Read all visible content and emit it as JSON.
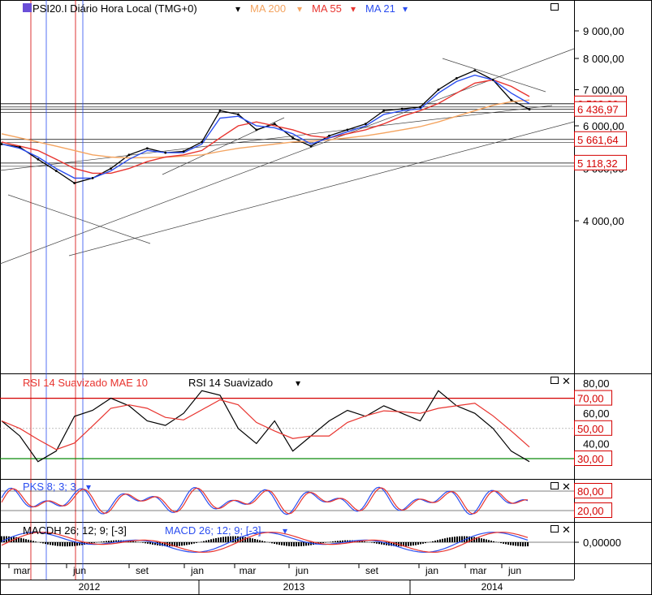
{
  "colors": {
    "price": "#000000",
    "ma200": "#f4a460",
    "ma55": "#e8342f",
    "ma21": "#2b4ef0",
    "rsi": "#000000",
    "rsi_mae": "#e8342f",
    "level_red": "#d40000",
    "level_green": "#0a8a0a",
    "pks_blue": "#2b4ef0",
    "pks_red": "#e8342f",
    "macd": "#2b4ef0",
    "macd_signal": "#e8342f",
    "hist": "#000000",
    "grid": "#000000"
  },
  "header": {
    "title": "PSI20.I Diário Hora Local (TMG+0)",
    "ma200_label": "MA 200",
    "ma55_label": "MA 55",
    "ma21_label": "MA 21",
    "dropdown_glyph": "▾"
  },
  "rsi_panel": {
    "label1": "RSI 14 Suavizado MAE 10",
    "label2": "RSI 14 Suavizado",
    "dropdown_glyph": "▾"
  },
  "pks_panel": {
    "label": "PKS 8; 3; 3",
    "dropdown_glyph": "▾"
  },
  "macd_panel": {
    "label1": "MACDH 26; 12; 9; [-3]",
    "label2": "MACD 26; 12; 9; [-3]",
    "dropdown_glyph": "▾"
  },
  "price_axis": {
    "ticks": [
      "9 000,00",
      "8 000,00",
      "7 000,00",
      "6 000,00",
      "5 000,00",
      "4 000,00"
    ],
    "values": [
      9000,
      8000,
      7000,
      6000,
      5000,
      4000
    ],
    "highlighted": [
      {
        "label": "6 593,20",
        "value": 6593.2
      },
      {
        "label": "6 436,97",
        "value": 6436.97
      },
      {
        "label": "5 661,64",
        "value": 5661.64
      },
      {
        "label": "5 118,32",
        "value": 5118.32
      }
    ]
  },
  "rsi_axis": {
    "ticks": [
      "80,00",
      "60,00",
      "40,00"
    ],
    "values": [
      80,
      60,
      40
    ],
    "highlighted": [
      {
        "label": "70,00",
        "value": 70
      },
      {
        "label": "50,00",
        "value": 50
      },
      {
        "label": "30,00",
        "value": 30
      }
    ]
  },
  "pks_axis": {
    "highlighted": [
      {
        "label": "80,00",
        "value": 80
      },
      {
        "label": "20,00",
        "value": 20
      }
    ]
  },
  "macd_axis": {
    "ticks": [
      "0,00000"
    ],
    "values": [
      0
    ]
  },
  "time_axis": {
    "months": [
      "mar",
      "jun",
      "set",
      "jan",
      "mar",
      "jun",
      "set",
      "jan",
      "mar",
      "jun"
    ],
    "years": [
      "2012",
      "2013",
      "2014"
    ]
  },
  "chart_data": {
    "type": "line",
    "price_scale": "log",
    "ylim": [
      3000,
      9800
    ],
    "x": [
      "2012-01",
      "2012-02",
      "2012-03",
      "2012-04",
      "2012-05",
      "2012-06",
      "2012-07",
      "2012-08",
      "2012-09",
      "2012-10",
      "2012-11",
      "2012-12",
      "2013-01",
      "2013-02",
      "2013-03",
      "2013-04",
      "2013-05",
      "2013-06",
      "2013-07",
      "2013-08",
      "2013-09",
      "2013-10",
      "2013-11",
      "2013-12",
      "2014-01",
      "2014-02",
      "2014-03",
      "2014-04",
      "2014-05",
      "2014-06"
    ],
    "series": [
      {
        "name": "PSI20.I",
        "values": [
          5550,
          5480,
          5200,
          4950,
          4700,
          4800,
          5000,
          5300,
          5450,
          5350,
          5380,
          5600,
          6400,
          6300,
          5900,
          6050,
          5700,
          5500,
          5750,
          5900,
          6050,
          6400,
          6450,
          6500,
          7000,
          7350,
          7600,
          7300,
          6700,
          6436.97
        ]
      },
      {
        "name": "MA 200",
        "values": [
          5800,
          5700,
          5600,
          5500,
          5400,
          5300,
          5250,
          5230,
          5240,
          5250,
          5270,
          5300,
          5380,
          5450,
          5500,
          5550,
          5600,
          5620,
          5650,
          5700,
          5750,
          5820,
          5900,
          5980,
          6100,
          6250,
          6400,
          6550,
          6650,
          6700
        ]
      },
      {
        "name": "MA 55",
        "values": [
          5600,
          5500,
          5400,
          5200,
          5000,
          4900,
          4900,
          5000,
          5150,
          5250,
          5300,
          5400,
          5700,
          6000,
          6100,
          6000,
          5900,
          5750,
          5700,
          5800,
          5900,
          6050,
          6250,
          6400,
          6600,
          6900,
          7200,
          7300,
          7100,
          6800
        ]
      },
      {
        "name": "MA 21",
        "values": [
          5550,
          5450,
          5250,
          5000,
          4800,
          4800,
          4950,
          5200,
          5400,
          5350,
          5350,
          5550,
          6200,
          6250,
          6000,
          5950,
          5800,
          5550,
          5700,
          5850,
          6000,
          6300,
          6400,
          6450,
          6900,
          7250,
          7450,
          7300,
          6900,
          6600
        ]
      }
    ],
    "levels": [
      6593.2,
      6436.97,
      5661.64,
      5118.32
    ],
    "rsi": {
      "levels": [
        70,
        50,
        30
      ],
      "values": [
        55,
        45,
        28,
        35,
        58,
        62,
        70,
        65,
        55,
        52,
        60,
        75,
        72,
        50,
        40,
        55,
        35,
        45,
        55,
        62,
        58,
        65,
        60,
        55,
        75,
        65,
        60,
        50,
        35,
        28
      ]
    },
    "pks": {
      "levels": [
        80,
        20
      ]
    },
    "macd": {
      "zero": 0
    }
  }
}
